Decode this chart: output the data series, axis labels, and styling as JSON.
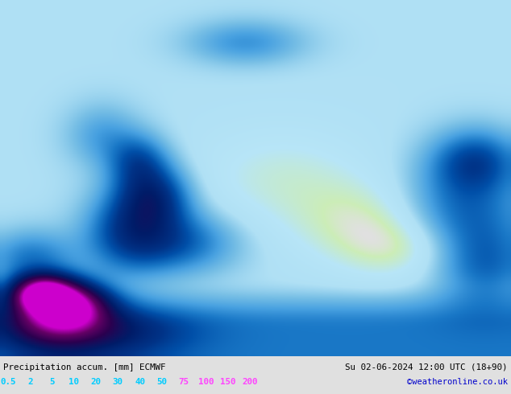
{
  "title_left": "Precipitation accum. [mm] ECMWF",
  "title_right": "Su 02-06-2024 12:00 UTC (18+90)",
  "credit": "©weatheronline.co.uk",
  "label_strings": [
    "0.5",
    "2",
    "5",
    "10",
    "20",
    "30",
    "40",
    "50",
    "75",
    "100",
    "150",
    "200"
  ],
  "text_colors_legend": [
    "#00ccff",
    "#00ccff",
    "#00ccff",
    "#00ccff",
    "#00ccff",
    "#00ccff",
    "#00ccff",
    "#00ccff",
    "#ff44ff",
    "#ff44ff",
    "#ff44ff",
    "#ff44ff"
  ],
  "bottom_bar_color": "#e0e0e0",
  "title_color": "#000000",
  "credit_color": "#0000cc",
  "figsize": [
    6.34,
    4.9
  ],
  "dpi": 100,
  "map_bg": "#d8d8d8",
  "sea_color": "#c8e4f0",
  "land_bg": "#e8e8e8",
  "precip_colors": [
    "#b8e0f8",
    "#88c8f0",
    "#58b0e8",
    "#2898e0",
    "#0070c8",
    "#0050a8",
    "#003088",
    "#001868",
    "#380048",
    "#680068",
    "#a800a8",
    "#e000e0",
    "#ff80ff"
  ]
}
